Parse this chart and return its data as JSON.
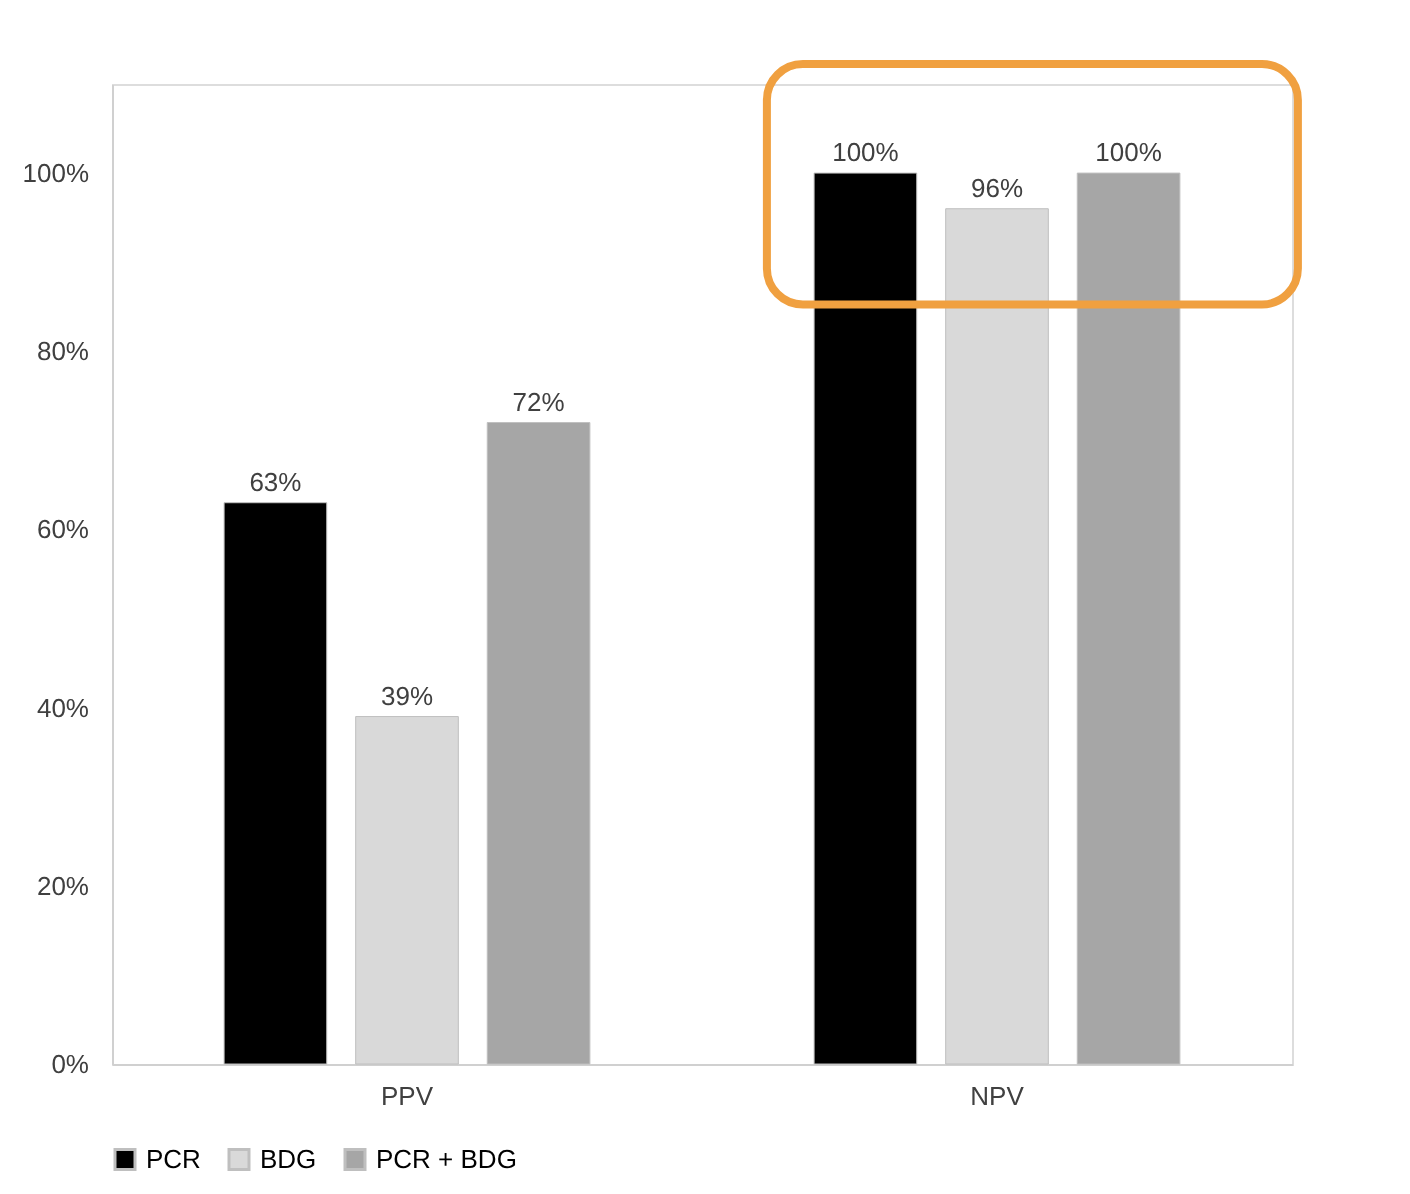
{
  "chart_data": {
    "type": "bar",
    "categories": [
      "PPV",
      "NPV"
    ],
    "series": [
      {
        "name": "PCR",
        "color": "#000000",
        "values": [
          63,
          100
        ],
        "value_labels": [
          "63%",
          "100%"
        ]
      },
      {
        "name": "BDG",
        "color": "#d9d9d9",
        "values": [
          39,
          96
        ],
        "value_labels": [
          "39%",
          "96%"
        ]
      },
      {
        "name": "PCR + BDG",
        "color": "#a6a6a6",
        "values": [
          72,
          100
        ],
        "value_labels": [
          "72%",
          "100%"
        ]
      }
    ],
    "ylim": [
      0,
      110
    ],
    "yticks": [
      {
        "value": 0,
        "label": "0%"
      },
      {
        "value": 20,
        "label": "20%"
      },
      {
        "value": 40,
        "label": "40%"
      },
      {
        "value": 60,
        "label": "60%"
      },
      {
        "value": 80,
        "label": "80%"
      },
      {
        "value": 100,
        "label": "100%"
      }
    ],
    "grid": false,
    "legend": "bottom"
  }
}
